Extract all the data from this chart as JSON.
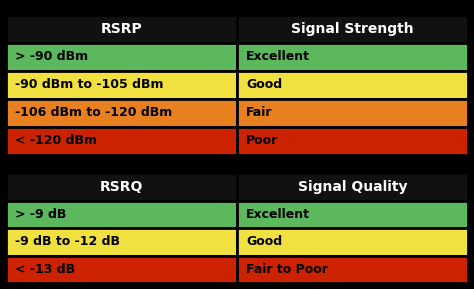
{
  "background_color": "#000000",
  "table1": {
    "header": [
      "RSRP",
      "Signal Strength"
    ],
    "rows": [
      [
        "> -90 dBm",
        "Excellent"
      ],
      [
        "-90 dBm to -105 dBm",
        "Good"
      ],
      [
        "-106 dBm to -120 dBm",
        "Fair"
      ],
      [
        "< -120 dBm",
        "Poor"
      ]
    ],
    "row_colors": [
      "#5cb85c",
      "#f0e040",
      "#e88020",
      "#cc2200"
    ],
    "header_color": "#111111",
    "header_text_color": "#ffffff",
    "row_text_color": "#000000",
    "border_color": "#000000",
    "border_lw": 2.0
  },
  "table2": {
    "header": [
      "RSRQ",
      "Signal Quality"
    ],
    "rows": [
      [
        "> -9 dB",
        "Excellent"
      ],
      [
        "-9 dB to -12 dB",
        "Good"
      ],
      [
        "< -13 dB",
        "Fair to Poor"
      ]
    ],
    "row_colors": [
      "#5cb85c",
      "#f0e040",
      "#cc2200"
    ],
    "header_color": "#111111",
    "header_text_color": "#ffffff",
    "row_text_color": "#000000",
    "border_color": "#000000",
    "border_lw": 2.0
  },
  "figsize": [
    4.74,
    2.89
  ],
  "dpi": 100,
  "header_fontsize": 10,
  "cell_fontsize": 9
}
